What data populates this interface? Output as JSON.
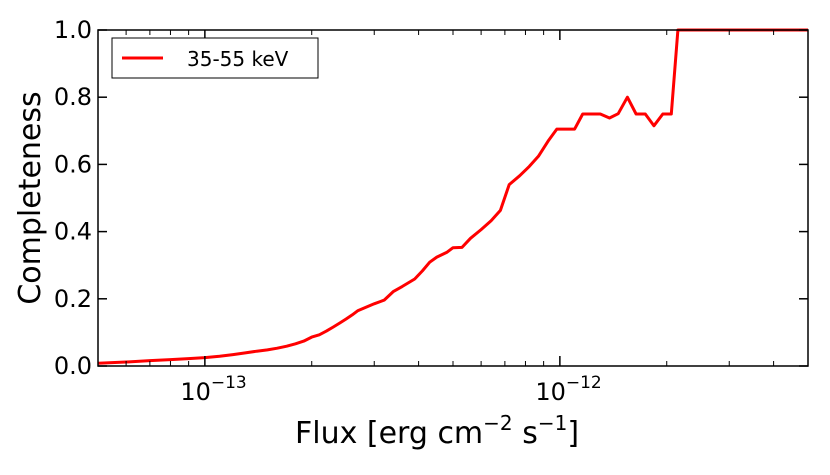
{
  "chart_data": {
    "type": "line",
    "xscale": "log",
    "xlim": [
      5e-14,
      5e-12
    ],
    "ylim": [
      0.0,
      1.0
    ],
    "grid": false,
    "legend_position": "top-left",
    "xlabel": {
      "base": "Flux [erg cm",
      "sup1": "−2",
      "mid": " s",
      "sup2": "−1",
      "end": "]"
    },
    "ylabel": "Completeness",
    "x_ticks": [
      {
        "value": 1e-13,
        "base": "10",
        "exp": "−13"
      },
      {
        "value": 1e-12,
        "base": "10",
        "exp": "−12"
      }
    ],
    "y_ticks": [
      {
        "value": 0.0,
        "label": "0.0"
      },
      {
        "value": 0.2,
        "label": "0.2"
      },
      {
        "value": 0.4,
        "label": "0.4"
      },
      {
        "value": 0.6,
        "label": "0.6"
      },
      {
        "value": 0.8,
        "label": "0.8"
      },
      {
        "value": 1.0,
        "label": "1.0"
      }
    ],
    "series": [
      {
        "name": "35-55 keV",
        "color": "#ff0000",
        "points": [
          [
            5e-14,
            0.008
          ],
          [
            6e-14,
            0.012
          ],
          [
            7e-14,
            0.016
          ],
          [
            8e-14,
            0.019
          ],
          [
            9e-14,
            0.022
          ],
          [
            1e-13,
            0.025
          ],
          [
            1.1e-13,
            0.029
          ],
          [
            1.2e-13,
            0.034
          ],
          [
            1.3e-13,
            0.039
          ],
          [
            1.4e-13,
            0.044
          ],
          [
            1.5e-13,
            0.048
          ],
          [
            1.6e-13,
            0.053
          ],
          [
            1.7e-13,
            0.059
          ],
          [
            1.8e-13,
            0.066
          ],
          [
            1.9e-13,
            0.074
          ],
          [
            2e-13,
            0.086
          ],
          [
            2.1e-13,
            0.093
          ],
          [
            2.2e-13,
            0.104
          ],
          [
            2.3e-13,
            0.116
          ],
          [
            2.4e-13,
            0.128
          ],
          [
            2.5e-13,
            0.14
          ],
          [
            2.6e-13,
            0.152
          ],
          [
            2.7e-13,
            0.165
          ],
          [
            2.8e-13,
            0.172
          ],
          [
            3e-13,
            0.185
          ],
          [
            3.2e-13,
            0.196
          ],
          [
            3.4e-13,
            0.222
          ],
          [
            3.6e-13,
            0.237
          ],
          [
            3.9e-13,
            0.259
          ],
          [
            4.1e-13,
            0.283
          ],
          [
            4.3e-13,
            0.309
          ],
          [
            4.5e-13,
            0.324
          ],
          [
            4.8e-13,
            0.338
          ],
          [
            5e-13,
            0.352
          ],
          [
            5.3e-13,
            0.353
          ],
          [
            5.6e-13,
            0.38
          ],
          [
            6e-13,
            0.406
          ],
          [
            6.4e-13,
            0.432
          ],
          [
            6.8e-13,
            0.463
          ],
          [
            7.2e-13,
            0.54
          ],
          [
            7.7e-13,
            0.566
          ],
          [
            8.2e-13,
            0.594
          ],
          [
            8.7e-13,
            0.624
          ],
          [
            9.3e-13,
            0.672
          ],
          [
            9.8e-13,
            0.705
          ],
          [
            1.04e-12,
            0.705
          ],
          [
            1.1e-12,
            0.705
          ],
          [
            1.16e-12,
            0.75
          ],
          [
            1.23e-12,
            0.75
          ],
          [
            1.3e-12,
            0.75
          ],
          [
            1.38e-12,
            0.738
          ],
          [
            1.46e-12,
            0.751
          ],
          [
            1.55e-12,
            0.8
          ],
          [
            1.64e-12,
            0.75
          ],
          [
            1.74e-12,
            0.75
          ],
          [
            1.84e-12,
            0.715
          ],
          [
            1.95e-12,
            0.75
          ],
          [
            2.06e-12,
            0.75
          ],
          [
            2.15e-12,
            1.0
          ],
          [
            2.5e-12,
            1.0
          ],
          [
            3.5e-12,
            1.0
          ],
          [
            5e-12,
            1.0
          ]
        ]
      }
    ]
  }
}
